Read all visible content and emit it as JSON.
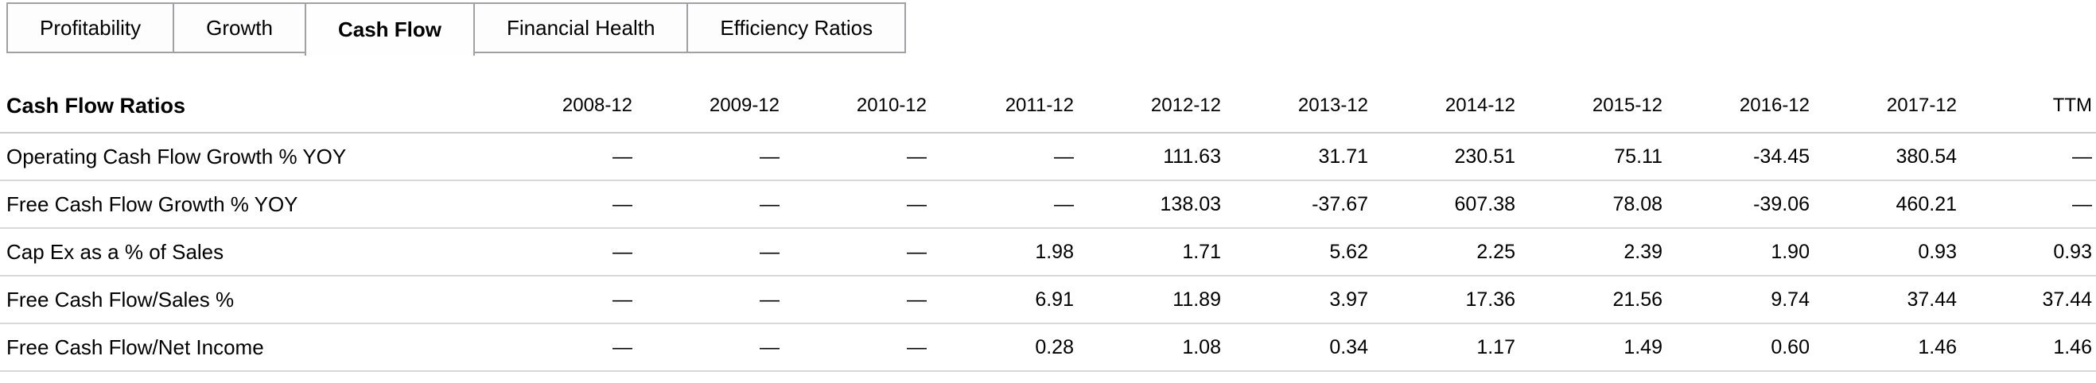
{
  "colors": {
    "background": "#ffffff",
    "text": "#000000",
    "tab_border": "#a0a0a5",
    "row_divider": "#d9d9d9",
    "header_divider": "#cccccc"
  },
  "tabs": {
    "items": [
      {
        "label": "Profitability",
        "active": false
      },
      {
        "label": "Growth",
        "active": false
      },
      {
        "label": "Cash Flow",
        "active": true
      },
      {
        "label": "Financial Health",
        "active": false
      },
      {
        "label": "Efficiency Ratios",
        "active": false
      }
    ]
  },
  "table": {
    "title": "Cash Flow Ratios",
    "columns": [
      "2008-12",
      "2009-12",
      "2010-12",
      "2011-12",
      "2012-12",
      "2013-12",
      "2014-12",
      "2015-12",
      "2016-12",
      "2017-12",
      "TTM"
    ],
    "rows": [
      {
        "label": "Operating Cash Flow Growth % YOY",
        "values": [
          "—",
          "—",
          "—",
          "—",
          "111.63",
          "31.71",
          "230.51",
          "75.11",
          "-34.45",
          "380.54",
          "—"
        ]
      },
      {
        "label": "Free Cash Flow Growth % YOY",
        "values": [
          "—",
          "—",
          "—",
          "—",
          "138.03",
          "-37.67",
          "607.38",
          "78.08",
          "-39.06",
          "460.21",
          "—"
        ]
      },
      {
        "label": "Cap Ex as a % of Sales",
        "values": [
          "—",
          "—",
          "—",
          "1.98",
          "1.71",
          "5.62",
          "2.25",
          "2.39",
          "1.90",
          "0.93",
          "0.93"
        ]
      },
      {
        "label": "Free Cash Flow/Sales %",
        "values": [
          "—",
          "—",
          "—",
          "6.91",
          "11.89",
          "3.97",
          "17.36",
          "21.56",
          "9.74",
          "37.44",
          "37.44"
        ]
      },
      {
        "label": "Free Cash Flow/Net Income",
        "values": [
          "—",
          "—",
          "—",
          "0.28",
          "1.08",
          "0.34",
          "1.17",
          "1.49",
          "0.60",
          "1.46",
          "1.46"
        ]
      }
    ]
  }
}
